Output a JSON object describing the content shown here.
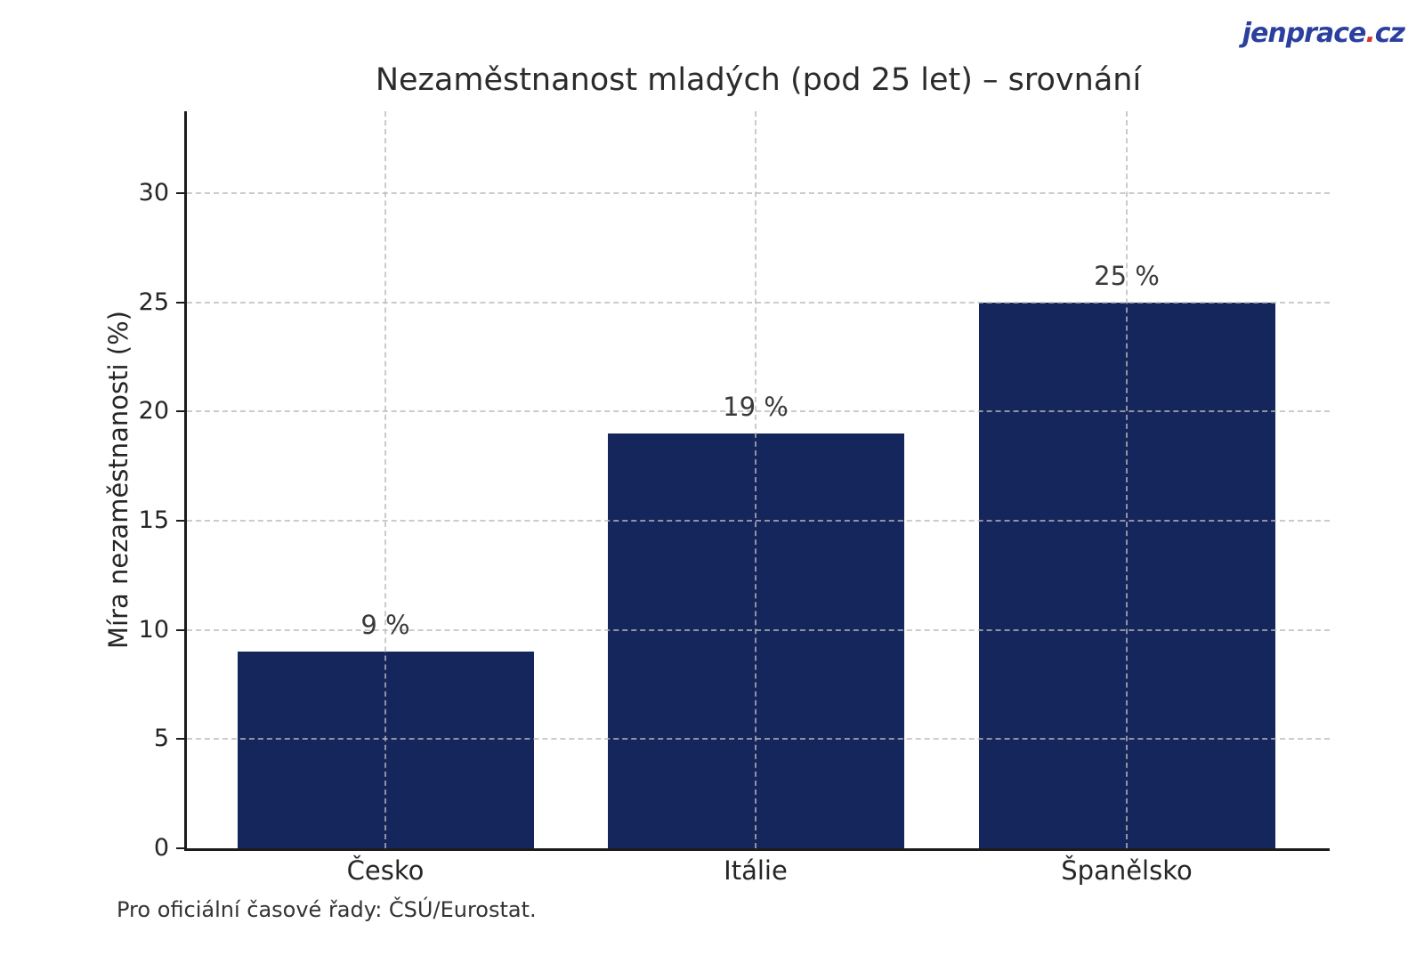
{
  "logo": {
    "name": "jenprace",
    "dot": ".",
    "tld": "cz",
    "blue": "#2b3f9e",
    "red": "#d2342e"
  },
  "chart_data": {
    "type": "bar",
    "title": "Nezaměstnanost mladých (pod 25 let) – srovnání",
    "categories": [
      "Česko",
      "Itálie",
      "Španělsko"
    ],
    "values": [
      9,
      19,
      25
    ],
    "value_labels": [
      "9 %",
      "19 %",
      "25 %"
    ],
    "xlabel": "",
    "ylabel": "Míra nezaměstnanosti (%)",
    "ylim": [
      0,
      33.75
    ],
    "yticks": [
      0,
      5,
      10,
      15,
      20,
      25,
      30
    ],
    "grid": "dashed, drawn above bars",
    "legend": "none",
    "bar_color": "#14265c"
  },
  "footer": {
    "note": "Pro oficiální časové řady: ČSÚ/Eurostat."
  },
  "colors": {
    "bar": "#14265c",
    "axis": "#1c1c1c",
    "grid": "#b9b9b9",
    "text": "#2b2b2b",
    "background": "#ffffff"
  }
}
